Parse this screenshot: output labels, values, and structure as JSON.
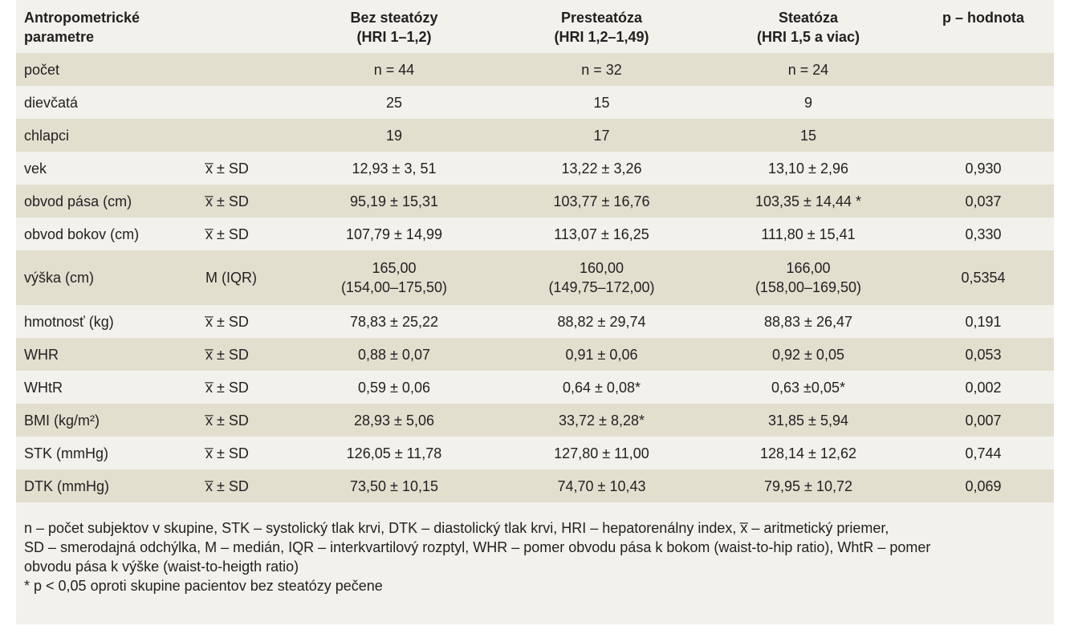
{
  "headers": {
    "param": [
      "Antropometrické",
      "parametre"
    ],
    "stat": "",
    "group1": [
      "Bez steatózy",
      "(HRI 1–1,2)"
    ],
    "group2": [
      "Presteatóza",
      "(HRI 1,2–1,49)"
    ],
    "group3": [
      "Steatóza",
      "(HRI 1,5 a viac)"
    ],
    "p": "p – hodnota"
  },
  "rows": [
    {
      "label": "počet",
      "stat": "",
      "g1": "n = 44",
      "g2": "n = 32",
      "g3": "n = 24",
      "p": ""
    },
    {
      "label": "dievčatá",
      "stat": "",
      "g1": "25",
      "g2": "15",
      "g3": "9",
      "p": ""
    },
    {
      "label": "chlapci",
      "stat": "",
      "g1": "19",
      "g2": "17",
      "g3": "15",
      "p": ""
    },
    {
      "label": "vek",
      "stat": "x̅ ± SD",
      "g1": "12,93 ± 3, 51",
      "g2": "13,22 ± 3,26",
      "g3": "13,10 ± 2,96",
      "p": "0,930"
    },
    {
      "label": "obvod pása (cm)",
      "stat": "x̅ ± SD",
      "g1": "95,19 ± 15,31",
      "g2": "103,77 ± 16,76",
      "g3": "103,35 ± 14,44 *",
      "p": "0,037"
    },
    {
      "label": "obvod bokov (cm)",
      "stat": "x̅ ± SD",
      "g1": "107,79 ± 14,99",
      "g2": "113,07 ± 16,25",
      "g3": "111,80 ± 15,41",
      "p": "0,330"
    },
    {
      "label": "výška (cm)",
      "stat": "M (IQR)",
      "g1": [
        "165,00",
        "(154,00–175,50)"
      ],
      "g2": [
        "160,00",
        "(149,75–172,00)"
      ],
      "g3": [
        "166,00",
        "(158,00–169,50)"
      ],
      "p": "0,5354"
    },
    {
      "label": "hmotnosť (kg)",
      "stat": "x̅ ± SD",
      "g1": "78,83 ± 25,22",
      "g2": "88,82 ± 29,74",
      "g3": "88,83 ± 26,47",
      "p": "0,191"
    },
    {
      "label": "WHR",
      "stat": "x̅ ± SD",
      "g1": "0,88 ± 0,07",
      "g2": "0,91 ± 0,06",
      "g3": "0,92 ± 0,05",
      "p": "0,053"
    },
    {
      "label": "WHtR",
      "stat": "x̅ ± SD",
      "g1": "0,59 ± 0,06",
      "g2": "0,64 ± 0,08*",
      "g3": "0,63 ±0,05*",
      "p": "0,002"
    },
    {
      "label": "BMI (kg/m²)",
      "stat": "x̅ ± SD",
      "g1": "28,93 ± 5,06",
      "g2": "33,72 ± 8,28*",
      "g3": "31,85 ± 5,94",
      "p": "0,007"
    },
    {
      "label": "STK (mmHg)",
      "stat": "x̅ ± SD",
      "g1": "126,05 ± 11,78",
      "g2": "127,80 ± 11,00",
      "g3": "128,14 ± 12,62",
      "p": "0,744"
    },
    {
      "label": "DTK (mmHg)",
      "stat": "x̅ ± SD",
      "g1": "73,50 ± 10,15",
      "g2": "74,70 ± 10,43",
      "g3": "79,95 ± 10,72",
      "p": "0,069"
    }
  ],
  "footnote": {
    "line1": "n – počet subjektov v skupine, STK – systolický tlak krvi, DTK – diastolický tlak krvi, HRI – hepatorenálny index, x̅ – aritmetický priemer,",
    "line2": "SD – smerodajná odchýlka, M – medián, IQR – interkvartilový rozptyl, WHR – pomer obvodu pása k bokom (waist-to-hip ratio), WhtR – pomer",
    "line3": "obvodu pása k výške (waist-to-heigth ratio)",
    "line4": "* p < 0,05 oproti skupine pacientov bez steatózy pečene"
  },
  "colors": {
    "row_shade": "#e3dfcf",
    "panel_bg": "#f3f1ec",
    "text": "#231f20"
  }
}
